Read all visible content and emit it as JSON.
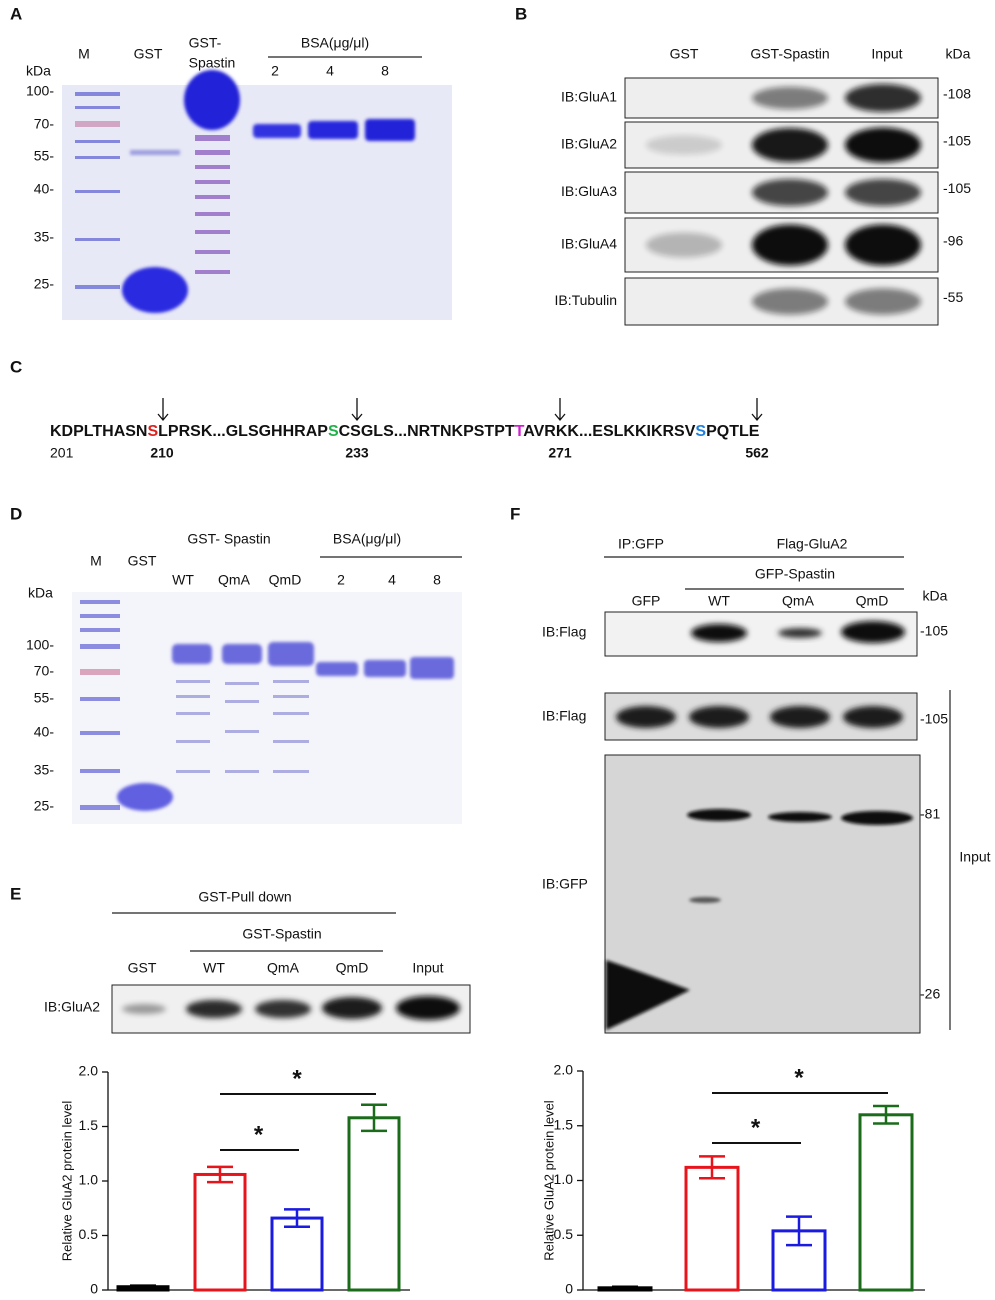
{
  "panel_a": {
    "letter": "A",
    "lanes": [
      "M",
      "GST"
    ],
    "gst_spastin": [
      "GST-",
      "Spastin"
    ],
    "bsa": "BSA(μg/μl)",
    "bsa_lanes": [
      "2",
      "4",
      "8"
    ],
    "kda": "kDa",
    "markers": [
      "100-",
      "70-",
      "55-",
      "40-",
      "35-",
      "25-"
    ]
  },
  "panel_b": {
    "letter": "B",
    "lanes": [
      "GST",
      "GST-Spastin",
      "Input"
    ],
    "kda": "kDa",
    "rows": [
      {
        "label": "IB:GluA1",
        "size": "-108"
      },
      {
        "label": "IB:GluA2",
        "size": "-105"
      },
      {
        "label": "IB:GluA3",
        "size": "-105"
      },
      {
        "label": "IB:GluA4",
        "size": "-96"
      },
      {
        "label": "IB:Tubulin",
        "size": "-55"
      }
    ]
  },
  "panel_c": {
    "letter": "C",
    "sequence": [
      "KDPLTHASN",
      "S",
      "LPRSK...GLSGHHRAP",
      "S",
      "CSGLS...NRTNKPSTPT",
      "T",
      "AVRKK...ESLKKIKRSV",
      "S",
      "PQTLE"
    ],
    "start": "201",
    "sites": [
      "210",
      "233",
      "271",
      "562"
    ]
  },
  "panel_d": {
    "letter": "D",
    "lanes": [
      "M",
      "GST"
    ],
    "gst_spastin": "GST- Spastin",
    "variants": [
      "WT",
      "QmA",
      "QmD"
    ],
    "bsa": "BSA(μg/μl)",
    "bsa_lanes": [
      "2",
      "4",
      "8"
    ],
    "kda": "kDa",
    "markers": [
      "100-",
      "70-",
      "55-",
      "40-",
      "35-",
      "25-"
    ]
  },
  "panel_e": {
    "letter": "E",
    "pulldown": "GST-Pull down",
    "gst_spastin": "GST-Spastin",
    "lanes": [
      "GST",
      "WT",
      "QmA",
      "QmD",
      "Input"
    ],
    "blot": "IB:GluA2"
  },
  "panel_f": {
    "letter": "F",
    "ip": "IP:GFP",
    "flag": "Flag-GluA2",
    "gfp_spastin": "GFP-Spastin",
    "lanes": [
      "GFP",
      "WT",
      "QmA",
      "QmD"
    ],
    "kda": "kDa",
    "blots": [
      {
        "label": "IB:Flag",
        "sizes": [
          "-105"
        ]
      },
      {
        "label": "IB:Flag",
        "sizes": [
          "-105"
        ]
      },
      {
        "label": "IB:GFP",
        "sizes": [
          "-81",
          "-26"
        ]
      }
    ],
    "input": "Input"
  },
  "chart_data": [
    {
      "type": "bar",
      "ylabel": "Relative  GluA2  protein level",
      "categories": [
        null,
        null,
        null,
        null
      ],
      "values": [
        0.03,
        1.06,
        0.66,
        1.58
      ],
      "errors": [
        0.01,
        0.07,
        0.08,
        0.12
      ],
      "colors": [
        "#000000",
        "#e8141c",
        "#1a1ae0",
        "#1a6b1a"
      ],
      "ylim": [
        0,
        2
      ],
      "yticks": [
        0,
        0.5,
        {
          "value": 1,
          "label": "1.0"
        },
        1.5,
        {
          "value": 2,
          "label": "2.0"
        }
      ],
      "annotations": [
        "*",
        "*"
      ]
    },
    {
      "type": "bar",
      "ylabel": "Relative  GluA2  protein level",
      "categories": [
        null,
        null,
        null,
        null
      ],
      "values": [
        0.02,
        1.12,
        0.54,
        1.6
      ],
      "errors": [
        0.01,
        0.1,
        0.13,
        0.08
      ],
      "colors": [
        "#000000",
        "#e8141c",
        "#1a1ae0",
        "#1a6b1a"
      ],
      "ylim": [
        0,
        2
      ],
      "yticks": [
        0,
        0.5,
        {
          "value": 1,
          "label": "1.0"
        },
        1.5,
        {
          "value": 2,
          "label": "2.0"
        }
      ],
      "annotations": [
        "*",
        "*"
      ]
    }
  ]
}
